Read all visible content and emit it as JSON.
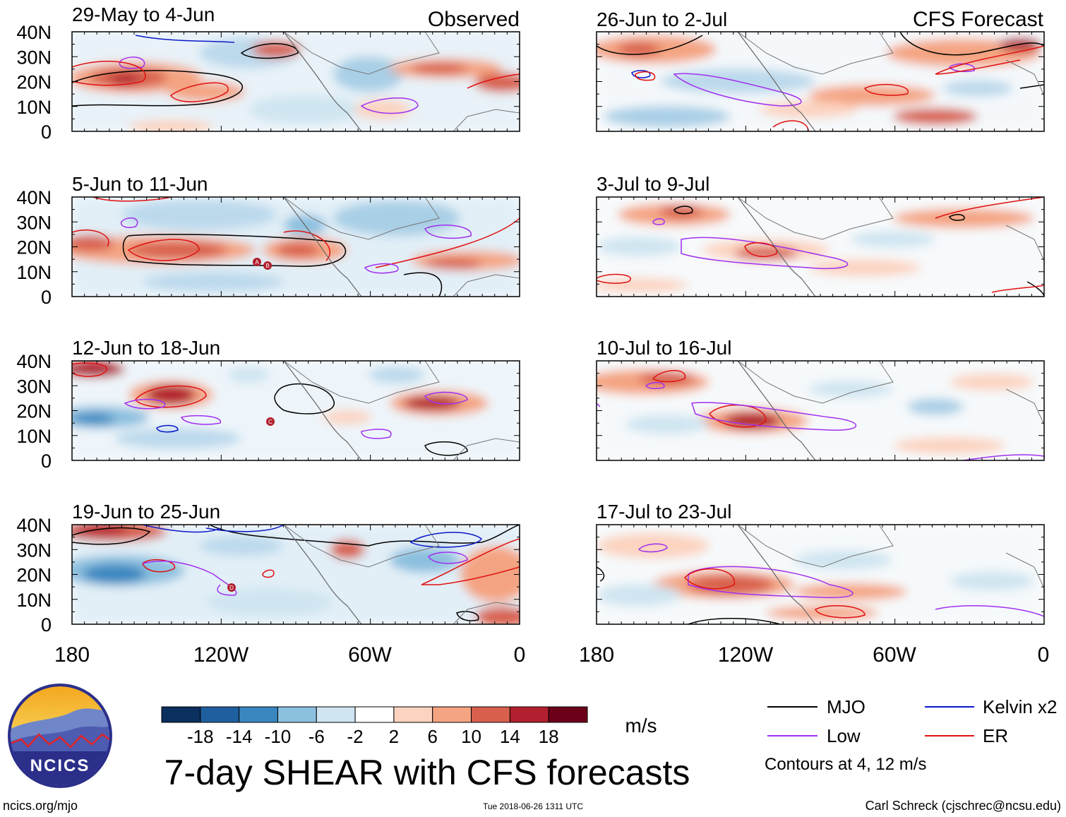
{
  "figure": {
    "title": "7-day SHEAR with CFS forecasts",
    "observed_label": "Observed",
    "forecast_label": "CFS Forecast",
    "website": "ncics.org/mjo",
    "timestamp": "Tue 2018-06-26 1311 UTC",
    "author": "Carl Schreck (cjschrec@ncsu.edu)",
    "logo_text": "NCICS"
  },
  "axes": {
    "lat_ticks": [
      "40N",
      "30N",
      "20N",
      "10N",
      "0"
    ],
    "lon_ticks": [
      "180",
      "120W",
      "60W",
      "0"
    ]
  },
  "panels_observed": [
    {
      "period": "29-May to 4-Jun"
    },
    {
      "period": "5-Jun to 11-Jun"
    },
    {
      "period": "12-Jun to 18-Jun"
    },
    {
      "period": "19-Jun to 25-Jun"
    }
  ],
  "panels_forecast": [
    {
      "period": "26-Jun to 2-Jul"
    },
    {
      "period": "3-Jul to 9-Jul"
    },
    {
      "period": "10-Jul to 16-Jul"
    },
    {
      "period": "17-Jul to 23-Jul"
    }
  ],
  "colorbar": {
    "units": "m/s",
    "labels": [
      "-18",
      "-14",
      "-10",
      "-6",
      "-2",
      "2",
      "6",
      "10",
      "14",
      "18"
    ],
    "colors": [
      "#0b2f5e",
      "#1f5fa0",
      "#3a87c0",
      "#8cc0df",
      "#cfe5f1",
      "#ffffff",
      "#fcd3bf",
      "#f4a482",
      "#d8604d",
      "#b21f2e",
      "#6c0019"
    ]
  },
  "legend": {
    "items": [
      {
        "label": "MJO",
        "color": "#000000"
      },
      {
        "label": "Kelvin x2",
        "color": "#0b18c8"
      },
      {
        "label": "Low",
        "color": "#a030f0"
      },
      {
        "label": "ER",
        "color": "#e01010"
      }
    ],
    "note": "Contours at 4, 12 m/s"
  },
  "storm_markers": [
    {
      "label": "A"
    },
    {
      "label": "B"
    },
    {
      "label": "C"
    },
    {
      "label": "D"
    }
  ]
}
